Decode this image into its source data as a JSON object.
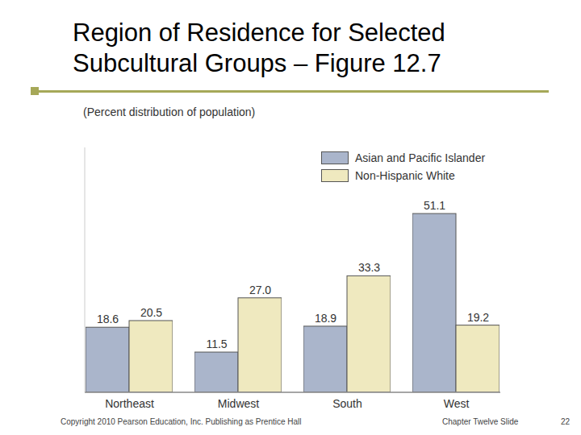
{
  "chart_data": {
    "type": "bar",
    "title": "Region of Residence for Selected Subcultural Groups – Figure 12.7",
    "subtitle": "(Percent distribution of population)",
    "annotations": [
      "Copyright 2010 Pearson Education, Inc. Publishing as Prentice Hall",
      "Chapter Twelve Slide",
      "22"
    ],
    "categories": [
      "Northeast",
      "Midwest",
      "South",
      "West"
    ],
    "series": [
      {
        "name": "Asian and Pacific Islander",
        "color": "#aab5cb",
        "values": [
          18.6,
          11.5,
          18.9,
          51.1
        ],
        "value_labels": [
          "18.6",
          "11.5",
          "18.9",
          "51.1"
        ]
      },
      {
        "name": "Non-Hispanic White",
        "color": "#efe9bf",
        "values": [
          20.5,
          27.0,
          33.3,
          19.2
        ],
        "value_labels": [
          "20.5",
          "27.0",
          "33.3",
          "19.2"
        ]
      }
    ],
    "ylim": [
      0,
      70
    ],
    "tick_labels": "x",
    "data_labels": true,
    "legend": "top-right",
    "grid": false
  }
}
